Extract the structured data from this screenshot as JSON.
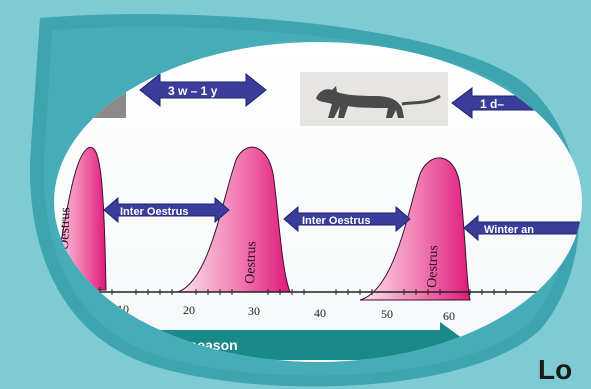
{
  "colors": {
    "background": "#7fcbd3",
    "frame_ring": "#3ea5b0",
    "frame_dark": "#2d8e99",
    "panel": "#ffffff",
    "peak_fill": "#e0197c",
    "peak_light": "#fde3ee",
    "arrow_fill": "#3a3d99",
    "arrow_stroke": "#1f2270",
    "season_bar": "#188a8a"
  },
  "labels": {
    "top_arrow_left": "3 w – 1 y",
    "top_arrow_right": "1 d–",
    "peak": "Oestrus",
    "inter_left": "Inter Oestrus",
    "inter_mid": "Inter Oestrus",
    "winter": "Winter an",
    "season": "ding season",
    "corner": "Lo"
  },
  "axis": {
    "ticks": [
      "10",
      "20",
      "30",
      "40",
      "50",
      "60"
    ]
  },
  "images": {
    "cat": "cat-photo"
  }
}
